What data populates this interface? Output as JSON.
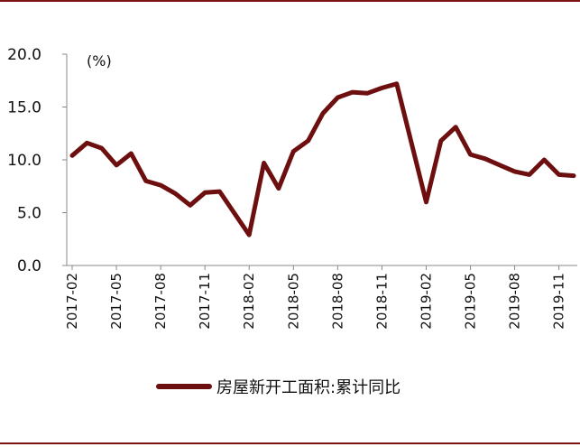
{
  "chart_data": {
    "type": "line",
    "unit_label": "(%)",
    "ylim": [
      0,
      20
    ],
    "yticks": [
      "0.0",
      "5.0",
      "10.0",
      "15.0",
      "20.0"
    ],
    "x_tick_labels": [
      "2017-02",
      "2017-05",
      "2017-08",
      "2017-11",
      "2018-02",
      "2018-05",
      "2018-08",
      "2018-11",
      "2019-02",
      "2019-05",
      "2019-08",
      "2019-11"
    ],
    "x": [
      "2017-02",
      "2017-03",
      "2017-04",
      "2017-05",
      "2017-06",
      "2017-07",
      "2017-08",
      "2017-09",
      "2017-10",
      "2017-11",
      "2017-12",
      "2018-02",
      "2018-03",
      "2018-04",
      "2018-05",
      "2018-06",
      "2018-07",
      "2018-08",
      "2018-09",
      "2018-10",
      "2018-11",
      "2018-12",
      "2019-02",
      "2019-03",
      "2019-04",
      "2019-05",
      "2019-06",
      "2019-07",
      "2019-08",
      "2019-09",
      "2019-10",
      "2019-11",
      "2019-12"
    ],
    "series": [
      {
        "name": "房屋新开工面积:累计同比",
        "color": "#6e0f0f",
        "values": [
          10.4,
          11.6,
          11.1,
          9.5,
          10.6,
          8.0,
          7.6,
          6.8,
          5.7,
          6.9,
          7.0,
          2.9,
          9.7,
          7.3,
          10.8,
          11.8,
          14.4,
          15.9,
          16.4,
          16.3,
          16.8,
          17.2,
          6.0,
          11.8,
          13.1,
          10.5,
          10.1,
          9.5,
          8.9,
          8.6,
          10.0,
          8.6,
          8.5
        ]
      }
    ],
    "grid": false,
    "legend_position": "bottom"
  }
}
